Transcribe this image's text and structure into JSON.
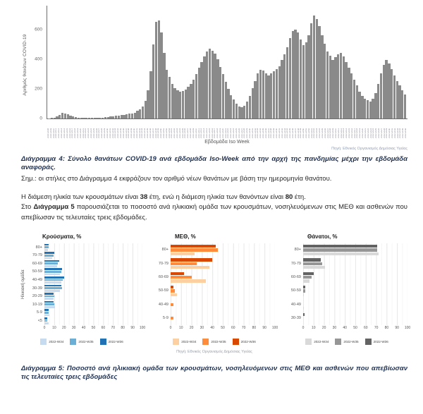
{
  "page": {
    "caption4": "Διάγραμμα 4: Σύνολο θανάτων COVID-19 ανά εβδομάδα Iso-Week από την αρχή της πανδημίας μέχρι την εβδομάδα αναφοράς.",
    "note4": "Σημ.: οι στήλες στο Διάγραμμα 4 εκφράζουν τον αριθμό νέων θανάτων με βάση την ημερομηνία θανάτου.",
    "source": "Πηγή: Εθνικός Οργανισμός Δημόσιας Υγείας",
    "caption5": "Διάγραμμα 5: Ποσοστό ανά ηλικιακή ομάδα των κρουσμάτων, νοσηλευόμενων στις ΜΕΘ και ασθενών που απεβίωσαν τις τελευταίες τρεις εβδομάδες",
    "para": {
      "s1a": "Η διάμεση ηλικία των κρουσμάτων είναι ",
      "s1b": "38",
      "s1c": " έτη, ενώ η διάμεση ηλικία των θανόντων είναι ",
      "s1d": "80",
      "s1e": " έτη.",
      "s2a": "Στο ",
      "s2b": "Διάγραμμα 5",
      "s2c": " παρουσιάζεται το ποσοστό ανά ηλικιακή ομάδα των κρουσμάτων, νοσηλευόμενων στις ΜΕΘ και ασθενών που απεβίωσαν τις τελευταίες τρεις εβδομάδες."
    }
  },
  "chart_data": [
    {
      "id": "weekly-deaths",
      "type": "bar",
      "title": "",
      "ylabel": "Αριθμός θανάτων COVID-19",
      "xlabel": "Εβδομάδα Iso Week",
      "bar_color": "#8a8a8a",
      "ylim": [
        0,
        760
      ],
      "yticks": [
        0,
        200,
        400,
        600
      ],
      "grid": false,
      "x": [
        "2020-W08",
        "2020-W09",
        "2020-W10",
        "2020-W11",
        "2020-W12",
        "2020-W13",
        "2020-W14",
        "2020-W15",
        "2020-W16",
        "2020-W17",
        "2020-W18",
        "2020-W19",
        "2020-W20",
        "2020-W21",
        "2020-W22",
        "2020-W23",
        "2020-W24",
        "2020-W25",
        "2020-W26",
        "2020-W27",
        "2020-W28",
        "2020-W29",
        "2020-W30",
        "2020-W31",
        "2020-W32",
        "2020-W33",
        "2020-W34",
        "2020-W35",
        "2020-W36",
        "2020-W37",
        "2020-W38",
        "2020-W39",
        "2020-W40",
        "2020-W41",
        "2020-W42",
        "2020-W43",
        "2020-W44",
        "2020-W45",
        "2020-W46",
        "2020-W47",
        "2020-W48",
        "2020-W49",
        "2020-W50",
        "2020-W51",
        "2020-W52",
        "2020-W53",
        "2021-W01",
        "2021-W02",
        "2021-W03",
        "2021-W04",
        "2021-W05",
        "2021-W06",
        "2021-W07",
        "2021-W08",
        "2021-W09",
        "2021-W10",
        "2021-W11",
        "2021-W12",
        "2021-W13",
        "2021-W14",
        "2021-W15",
        "2021-W16",
        "2021-W17",
        "2021-W18",
        "2021-W19",
        "2021-W20",
        "2021-W21",
        "2021-W22",
        "2021-W23",
        "2021-W24",
        "2021-W25",
        "2021-W26",
        "2021-W27",
        "2021-W28",
        "2021-W29",
        "2021-W30",
        "2021-W31",
        "2021-W32",
        "2021-W33",
        "2021-W34",
        "2021-W35",
        "2021-W36",
        "2021-W37",
        "2021-W38",
        "2021-W39",
        "2021-W40",
        "2021-W41",
        "2021-W42",
        "2021-W43",
        "2021-W44",
        "2021-W45",
        "2021-W46",
        "2021-W47",
        "2021-W48",
        "2021-W49",
        "2021-W50",
        "2021-W51",
        "2021-W52",
        "2022-W01",
        "2022-W02",
        "2022-W03",
        "2022-W04",
        "2022-W05",
        "2022-W06",
        "2022-W07",
        "2022-W08",
        "2022-W09",
        "2022-W10",
        "2022-W11",
        "2022-W12",
        "2022-W13",
        "2022-W14",
        "2022-W15",
        "2022-W16",
        "2022-W17",
        "2022-W18",
        "2022-W19",
        "2022-W20",
        "2022-W21",
        "2022-W22",
        "2022-W23",
        "2022-W24",
        "2022-W25",
        "2022-W26",
        "2022-W27",
        "2022-W28",
        "2022-W29",
        "2022-W30",
        "2022-W31",
        "2022-W32",
        "2022-W33",
        "2022-W34",
        "2022-W35",
        "2022-W36"
      ],
      "values": [
        2,
        3,
        6,
        14,
        26,
        38,
        34,
        28,
        20,
        14,
        10,
        7,
        5,
        4,
        3,
        3,
        4,
        4,
        5,
        5,
        6,
        8,
        10,
        12,
        14,
        17,
        20,
        22,
        25,
        28,
        31,
        35,
        40,
        50,
        62,
        82,
        120,
        190,
        320,
        500,
        650,
        660,
        580,
        440,
        330,
        280,
        235,
        205,
        190,
        182,
        186,
        196,
        212,
        232,
        262,
        300,
        340,
        382,
        420,
        452,
        470,
        458,
        436,
        398,
        348,
        298,
        248,
        198,
        158,
        128,
        100,
        82,
        76,
        86,
        112,
        152,
        202,
        252,
        302,
        330,
        322,
        304,
        292,
        302,
        318,
        332,
        352,
        392,
        432,
        482,
        542,
        590,
        600,
        578,
        530,
        492,
        512,
        562,
        640,
        692,
        672,
        622,
        562,
        502,
        452,
        422,
        392,
        412,
        432,
        442,
        420,
        382,
        342,
        302,
        262,
        222,
        182,
        152,
        132,
        122,
        112,
        132,
        172,
        232,
        302,
        362,
        392,
        372,
        332,
        292,
        252,
        222,
        192,
        162
      ]
    },
    {
      "id": "cases",
      "type": "bar",
      "orientation": "horizontal",
      "title": "Κρούσματα, %",
      "ylabel": "Ηλικιακή ομάδα",
      "xlim": [
        0,
        100
      ],
      "xticks": [
        0,
        10,
        20,
        30,
        40,
        50,
        60,
        70,
        80,
        90,
        100
      ],
      "grid": true,
      "legend_position": "bottom",
      "categories": [
        "80+",
        "70-79",
        "60-69",
        "50-59",
        "40-49",
        "30-39",
        "20-29",
        "10-19",
        "5-9",
        "<5"
      ],
      "series": [
        {
          "name": "2022-W34",
          "color": "#c6dbef",
          "values": [
            3.5,
            8,
            13,
            16,
            17,
            16,
            9,
            11,
            5,
            4
          ]
        },
        {
          "name": "2022-W35",
          "color": "#6baed6",
          "values": [
            4,
            9,
            14,
            17,
            19,
            18,
            10,
            10,
            4,
            3
          ]
        },
        {
          "name": "2022-W36",
          "color": "#2171b5",
          "values": [
            4.5,
            10,
            15,
            18,
            20,
            17,
            9,
            9,
            4,
            3
          ]
        }
      ]
    },
    {
      "id": "icu",
      "type": "bar",
      "orientation": "horizontal",
      "title": "ΜΕΘ, %",
      "ylabel": "",
      "xlim": [
        0,
        100
      ],
      "xticks": [
        0,
        10,
        20,
        30,
        40,
        50,
        60,
        70,
        80,
        90,
        100
      ],
      "grid": true,
      "legend_position": "bottom",
      "categories": [
        "80+",
        "70-79",
        "60-69",
        "50-59",
        "40-49",
        "5-9"
      ],
      "series": [
        {
          "name": "2022-W34",
          "color": "#fdd0a2",
          "values": [
            23,
            37,
            34,
            6,
            0,
            0
          ]
        },
        {
          "name": "2022-W35",
          "color": "#fd8d3c",
          "values": [
            45,
            25,
            20,
            4,
            3,
            3
          ]
        },
        {
          "name": "2022-W36",
          "color": "#d94801",
          "values": [
            43,
            40,
            13,
            3,
            0,
            0
          ]
        }
      ]
    },
    {
      "id": "deaths",
      "type": "bar",
      "orientation": "horizontal",
      "title": "Θάνατοι, %",
      "ylabel": "",
      "xlim": [
        0,
        100
      ],
      "xticks": [
        0,
        10,
        20,
        30,
        40,
        50,
        60,
        70,
        80,
        90,
        100
      ],
      "grid": true,
      "legend_position": "bottom",
      "categories": [
        "80+",
        "70-79",
        "60-69",
        "50-59",
        "40-49",
        "30-39"
      ],
      "series": [
        {
          "name": "2022-W34",
          "color": "#d9d9d9",
          "values": [
            72,
            21,
            6,
            1,
            1,
            0
          ]
        },
        {
          "name": "2022-W35",
          "color": "#969696",
          "values": [
            71,
            18,
            8,
            2,
            0,
            0
          ]
        },
        {
          "name": "2022-W36",
          "color": "#636363",
          "values": [
            71,
            17,
            10,
            2,
            0,
            1.5
          ]
        }
      ]
    }
  ]
}
